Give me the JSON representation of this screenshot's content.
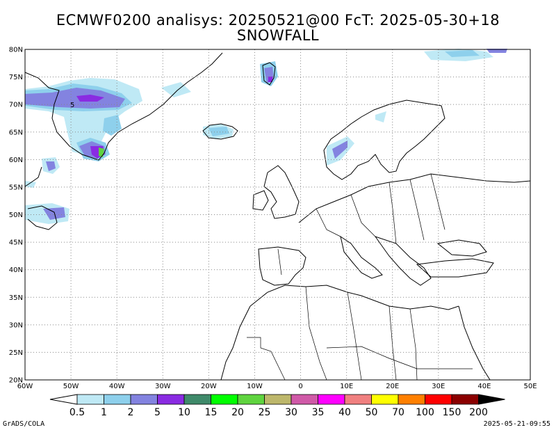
{
  "title": {
    "line1": "ECMWF0200 analisys: 20250521@00 FcT: 2025-05-30+18",
    "line2": "SNOWFALL"
  },
  "map": {
    "lon_range": [
      -60,
      50
    ],
    "lat_range": [
      20,
      80
    ],
    "lat_labels": [
      "80N",
      "75N",
      "70N",
      "65N",
      "60N",
      "55N",
      "50N",
      "45N",
      "40N",
      "35N",
      "30N",
      "25N",
      "20N"
    ],
    "lon_labels": [
      "60W",
      "50W",
      "40W",
      "30W",
      "20W",
      "10W",
      "0",
      "10E",
      "20E",
      "30E",
      "40E",
      "50E"
    ],
    "contour_label": "5",
    "grid": true
  },
  "colorbar": {
    "labels": [
      "0.5",
      "1",
      "2",
      "5",
      "10",
      "15",
      "20",
      "25",
      "30",
      "35",
      "40",
      "50",
      "70",
      "100",
      "150",
      "200"
    ],
    "colors": [
      "#bfe9f5",
      "#8ed0ec",
      "#8383e0",
      "#8a2be2",
      "#3f8a6a",
      "#00ff00",
      "#5fd43f",
      "#bdb76b",
      "#d05aa8",
      "#ff00ff",
      "#f08080",
      "#ffff00",
      "#ff8000",
      "#ff0000",
      "#8b0000"
    ]
  },
  "footer": {
    "credit": "GrADS/COLA",
    "timestamp": "2025-05-21-09:55"
  }
}
